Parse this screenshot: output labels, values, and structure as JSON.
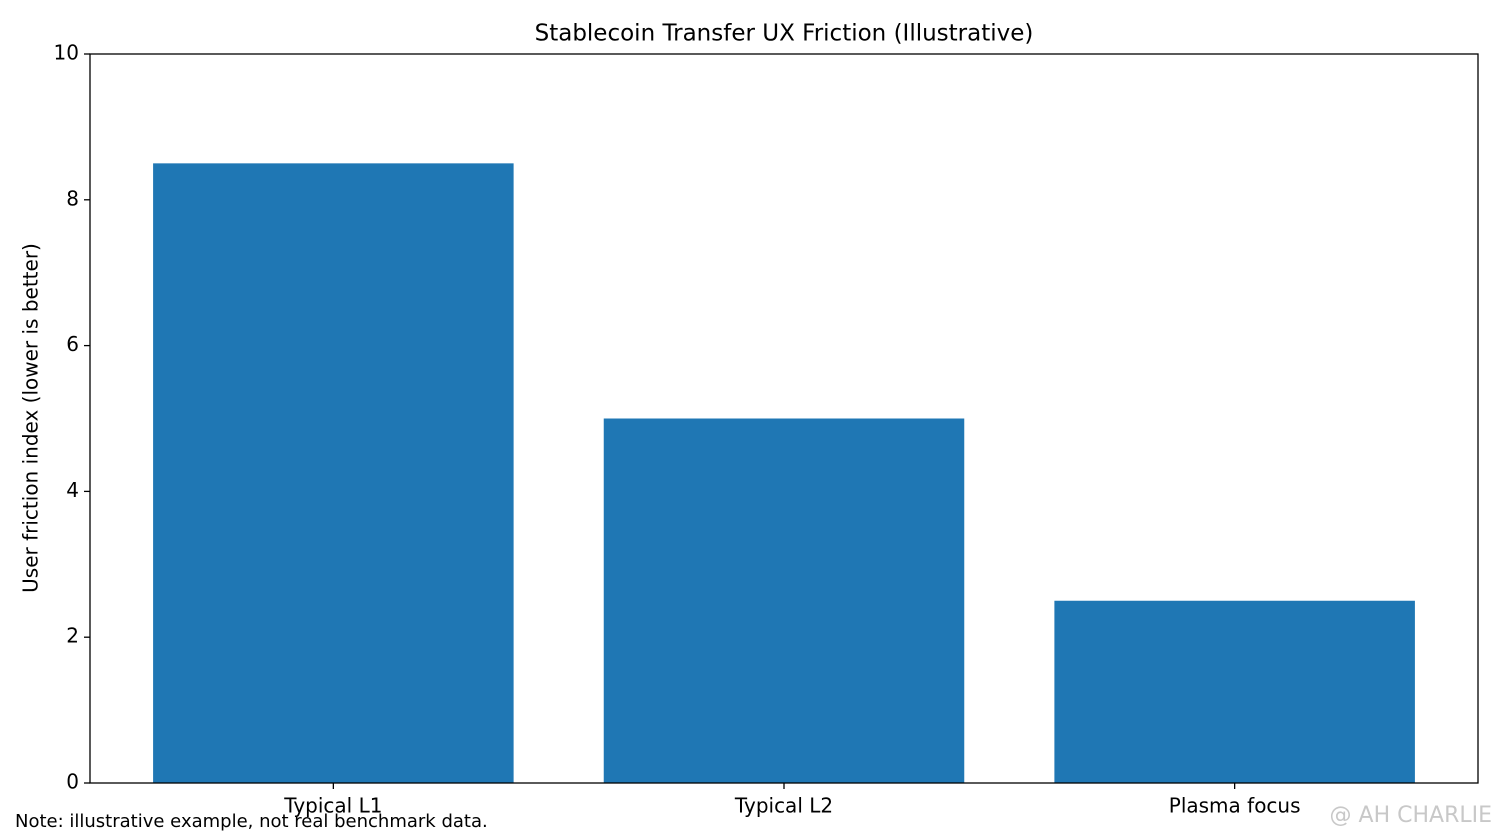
{
  "chart_data": {
    "type": "bar",
    "title": "Stablecoin Transfer UX Friction (Illustrative)",
    "y_label": "User friction index (lower is better)",
    "categories": [
      "Typical L1",
      "Typical L2",
      "Plasma focus"
    ],
    "values": [
      8.5,
      5.0,
      2.5
    ],
    "color": "#1f77b4",
    "ylim": [
      0,
      10
    ],
    "yticks": [
      0,
      2,
      4,
      6,
      8,
      10
    ],
    "grid": false,
    "note": "Note: illustrative example, not real benchmark data.",
    "watermark": "@ AH CHARLIE"
  }
}
